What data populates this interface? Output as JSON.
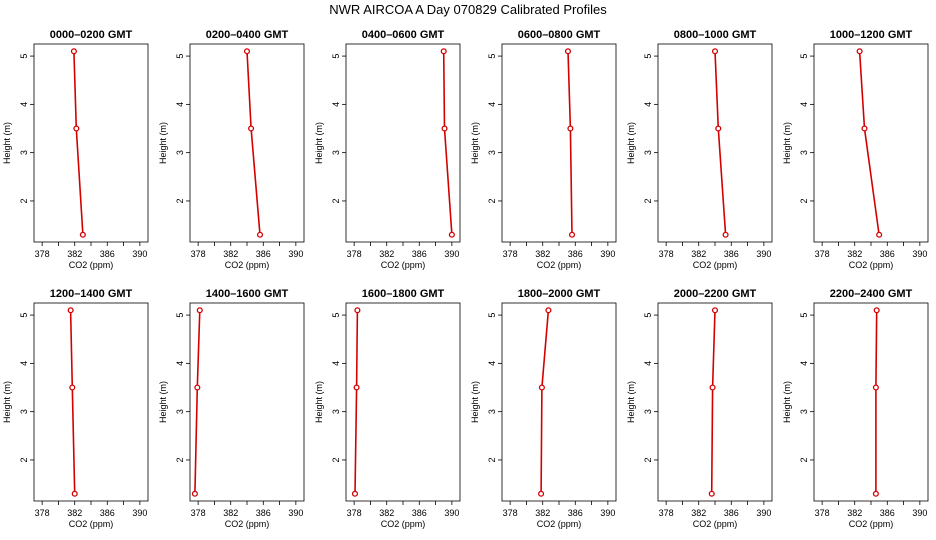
{
  "title": "NWR AIRCOA A  Day 070829  Calibrated Profiles",
  "colors": {
    "line": "#d40000",
    "axis": "#000000"
  },
  "chart_data": [
    {
      "type": "line",
      "title": "0000–0200 GMT",
      "xlabel": "CO2 (ppm)",
      "ylabel": "Height (m)",
      "xlim": [
        377,
        391
      ],
      "ylim": [
        1.15,
        5.25
      ],
      "xticks": [
        378,
        382,
        386,
        390
      ],
      "yticks": [
        2,
        3,
        4,
        5
      ],
      "x": [
        381.9,
        382.2,
        383.0
      ],
      "y": [
        5.1,
        3.5,
        1.3
      ]
    },
    {
      "type": "line",
      "title": "0200–0400 GMT",
      "xlabel": "CO2 (ppm)",
      "ylabel": "Height (m)",
      "xlim": [
        377,
        391
      ],
      "ylim": [
        1.15,
        5.25
      ],
      "xticks": [
        378,
        382,
        386,
        390
      ],
      "yticks": [
        2,
        3,
        4,
        5
      ],
      "x": [
        384.0,
        384.5,
        385.6
      ],
      "y": [
        5.1,
        3.5,
        1.3
      ]
    },
    {
      "type": "line",
      "title": "0400–0600 GMT",
      "xlabel": "CO2 (ppm)",
      "ylabel": "Height (m)",
      "xlim": [
        377,
        391
      ],
      "ylim": [
        1.15,
        5.25
      ],
      "xticks": [
        378,
        382,
        386,
        390
      ],
      "yticks": [
        2,
        3,
        4,
        5
      ],
      "x": [
        389.0,
        389.1,
        390.0
      ],
      "y": [
        5.1,
        3.5,
        1.3
      ]
    },
    {
      "type": "line",
      "title": "0600–0800 GMT",
      "xlabel": "CO2 (ppm)",
      "ylabel": "Height (m)",
      "xlim": [
        377,
        391
      ],
      "ylim": [
        1.15,
        5.25
      ],
      "xticks": [
        378,
        382,
        386,
        390
      ],
      "yticks": [
        2,
        3,
        4,
        5
      ],
      "x": [
        385.1,
        385.4,
        385.6
      ],
      "y": [
        5.1,
        3.5,
        1.3
      ]
    },
    {
      "type": "line",
      "title": "0800–1000 GMT",
      "xlabel": "CO2 (ppm)",
      "ylabel": "Height (m)",
      "xlim": [
        377,
        391
      ],
      "ylim": [
        1.15,
        5.25
      ],
      "xticks": [
        378,
        382,
        386,
        390
      ],
      "yticks": [
        2,
        3,
        4,
        5
      ],
      "x": [
        384.0,
        384.4,
        385.3
      ],
      "y": [
        5.1,
        3.5,
        1.3
      ]
    },
    {
      "type": "line",
      "title": "1000–1200 GMT",
      "xlabel": "CO2 (ppm)",
      "ylabel": "Height (m)",
      "xlim": [
        377,
        391
      ],
      "ylim": [
        1.15,
        5.25
      ],
      "xticks": [
        378,
        382,
        386,
        390
      ],
      "yticks": [
        2,
        3,
        4,
        5
      ],
      "x": [
        382.6,
        383.2,
        385.0
      ],
      "y": [
        5.1,
        3.5,
        1.3
      ]
    },
    {
      "type": "line",
      "title": "1200–1400 GMT",
      "xlabel": "CO2 (ppm)",
      "ylabel": "Height (m)",
      "xlim": [
        377,
        391
      ],
      "ylim": [
        1.15,
        5.25
      ],
      "xticks": [
        378,
        382,
        386,
        390
      ],
      "yticks": [
        2,
        3,
        4,
        5
      ],
      "x": [
        381.5,
        381.7,
        382.0
      ],
      "y": [
        5.1,
        3.5,
        1.3
      ]
    },
    {
      "type": "line",
      "title": "1400–1600 GMT",
      "xlabel": "CO2 (ppm)",
      "ylabel": "Height (m)",
      "xlim": [
        377,
        391
      ],
      "ylim": [
        1.15,
        5.25
      ],
      "xticks": [
        378,
        382,
        386,
        390
      ],
      "yticks": [
        2,
        3,
        4,
        5
      ],
      "x": [
        378.2,
        377.9,
        377.6
      ],
      "y": [
        5.1,
        3.5,
        1.3
      ]
    },
    {
      "type": "line",
      "title": "1600–1800 GMT",
      "xlabel": "CO2 (ppm)",
      "ylabel": "Height (m)",
      "xlim": [
        377,
        391
      ],
      "ylim": [
        1.15,
        5.25
      ],
      "xticks": [
        378,
        382,
        386,
        390
      ],
      "yticks": [
        2,
        3,
        4,
        5
      ],
      "x": [
        378.4,
        378.3,
        378.1
      ],
      "y": [
        5.1,
        3.5,
        1.3
      ]
    },
    {
      "type": "line",
      "title": "1800–2000 GMT",
      "xlabel": "CO2 (ppm)",
      "ylabel": "Height (m)",
      "xlim": [
        377,
        391
      ],
      "ylim": [
        1.15,
        5.25
      ],
      "xticks": [
        378,
        382,
        386,
        390
      ],
      "yticks": [
        2,
        3,
        4,
        5
      ],
      "x": [
        382.7,
        381.9,
        381.8
      ],
      "y": [
        5.1,
        3.5,
        1.3
      ]
    },
    {
      "type": "line",
      "title": "2000–2200 GMT",
      "xlabel": "CO2 (ppm)",
      "ylabel": "Height (m)",
      "xlim": [
        377,
        391
      ],
      "ylim": [
        1.15,
        5.25
      ],
      "xticks": [
        378,
        382,
        386,
        390
      ],
      "yticks": [
        2,
        3,
        4,
        5
      ],
      "x": [
        384.0,
        383.7,
        383.6
      ],
      "y": [
        5.1,
        3.5,
        1.3
      ]
    },
    {
      "type": "line",
      "title": "2200–2400 GMT",
      "xlabel": "CO2 (ppm)",
      "ylabel": "Height (m)",
      "xlim": [
        377,
        391
      ],
      "ylim": [
        1.15,
        5.25
      ],
      "xticks": [
        378,
        382,
        386,
        390
      ],
      "yticks": [
        2,
        3,
        4,
        5
      ],
      "x": [
        384.7,
        384.6,
        384.6
      ],
      "y": [
        5.1,
        3.5,
        1.3
      ]
    }
  ]
}
